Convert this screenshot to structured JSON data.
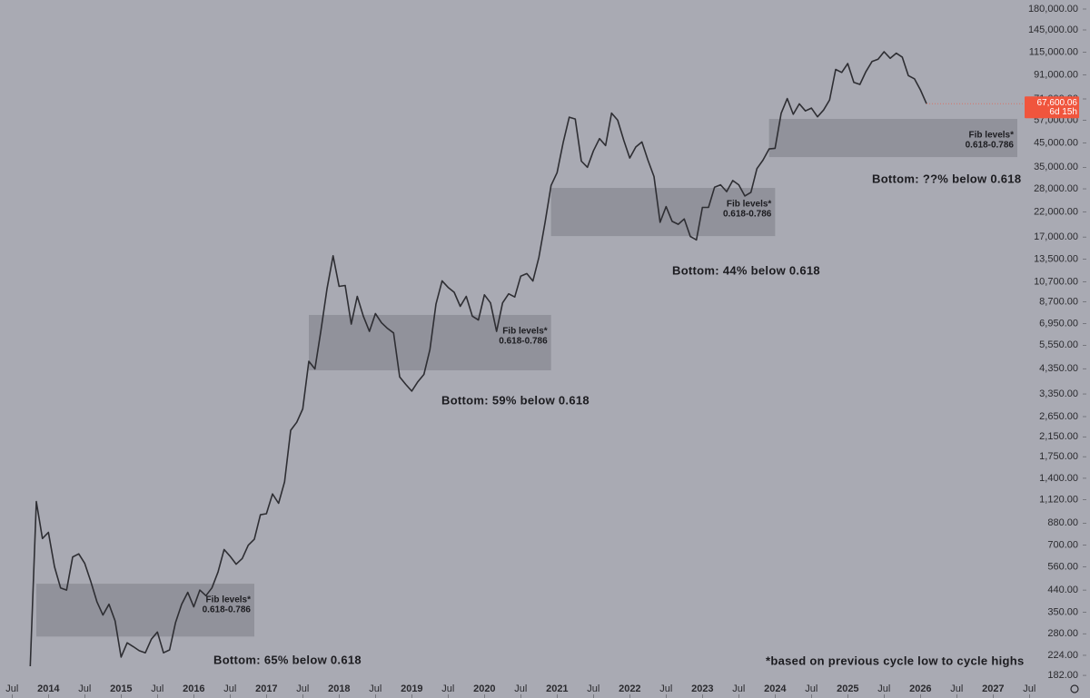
{
  "chart_data": {
    "type": "line",
    "log_scale": true,
    "series": [
      {
        "color": "#2e2e33",
        "x": [
          "2013-10",
          "2013-11",
          "2013-12",
          "2014-01",
          "2014-02",
          "2014-03",
          "2014-04",
          "2014-05",
          "2014-06",
          "2014-07",
          "2014-08",
          "2014-09",
          "2014-10",
          "2014-11",
          "2014-12",
          "2015-01",
          "2015-02",
          "2015-03",
          "2015-04",
          "2015-05",
          "2015-06",
          "2015-07",
          "2015-08",
          "2015-09",
          "2015-10",
          "2015-11",
          "2015-12",
          "2016-01",
          "2016-02",
          "2016-03",
          "2016-04",
          "2016-05",
          "2016-06",
          "2016-07",
          "2016-08",
          "2016-09",
          "2016-10",
          "2016-11",
          "2016-12",
          "2017-01",
          "2017-02",
          "2017-03",
          "2017-04",
          "2017-05",
          "2017-06",
          "2017-07",
          "2017-08",
          "2017-09",
          "2017-10",
          "2017-11",
          "2017-12",
          "2018-01",
          "2018-02",
          "2018-03",
          "2018-04",
          "2018-05",
          "2018-06",
          "2018-07",
          "2018-08",
          "2018-09",
          "2018-10",
          "2018-11",
          "2018-12",
          "2019-01",
          "2019-02",
          "2019-03",
          "2019-04",
          "2019-05",
          "2019-06",
          "2019-07",
          "2019-08",
          "2019-09",
          "2019-10",
          "2019-11",
          "2019-12",
          "2020-01",
          "2020-02",
          "2020-03",
          "2020-04",
          "2020-05",
          "2020-06",
          "2020-07",
          "2020-08",
          "2020-09",
          "2020-10",
          "2020-11",
          "2020-12",
          "2021-01",
          "2021-02",
          "2021-03",
          "2021-04",
          "2021-05",
          "2021-06",
          "2021-07",
          "2021-08",
          "2021-09",
          "2021-10",
          "2021-11",
          "2021-12",
          "2022-01",
          "2022-02",
          "2022-03",
          "2022-04",
          "2022-05",
          "2022-06",
          "2022-07",
          "2022-08",
          "2022-09",
          "2022-10",
          "2022-11",
          "2022-12",
          "2023-01",
          "2023-02",
          "2023-03",
          "2023-04",
          "2023-05",
          "2023-06",
          "2023-07",
          "2023-08",
          "2023-09",
          "2023-10",
          "2023-11",
          "2023-12",
          "2024-01",
          "2024-02",
          "2024-03",
          "2024-04",
          "2024-05",
          "2024-06",
          "2024-07",
          "2024-08",
          "2024-09",
          "2024-10",
          "2024-11",
          "2024-12",
          "2025-01",
          "2025-02",
          "2025-03",
          "2025-04",
          "2025-05",
          "2025-06",
          "2025-07",
          "2025-08",
          "2025-09",
          "2025-10",
          "2025-11",
          "2025-12",
          "2026-01",
          "2026-02"
        ],
        "values": [
          200,
          1100,
          750,
          800,
          560,
          450,
          440,
          620,
          640,
          580,
          480,
          390,
          340,
          380,
          320,
          220,
          255,
          245,
          235,
          230,
          265,
          285,
          230,
          237,
          315,
          380,
          430,
          370,
          440,
          415,
          450,
          530,
          670,
          625,
          575,
          610,
          700,
          745,
          960,
          970,
          1190,
          1080,
          1350,
          2300,
          2500,
          2870,
          4700,
          4340,
          6450,
          9950,
          14000,
          10200,
          10300,
          6900,
          9200,
          7500,
          6400,
          7700,
          7000,
          6600,
          6300,
          4000,
          3700,
          3450,
          3800,
          4100,
          5300,
          8500,
          10800,
          10100,
          9600,
          8300,
          9200,
          7500,
          7200,
          9350,
          8600,
          6400,
          8600,
          9450,
          9140,
          11350,
          11650,
          10780,
          13800,
          19700,
          29000,
          33100,
          45200,
          58800,
          57700,
          37300,
          35000,
          41500,
          47100,
          43800,
          61300,
          57000,
          46300,
          38500,
          43200,
          45500,
          37700,
          31800,
          19800,
          23300,
          20000,
          19400,
          20500,
          17100,
          16500,
          23100,
          23100,
          28500,
          29200,
          27200,
          30500,
          29200,
          26000,
          27000,
          34500,
          37700,
          42300,
          42600,
          61200,
          71300,
          60600,
          67500,
          62700,
          64600,
          59000,
          63300,
          70300,
          96400,
          93400,
          102400,
          84300,
          82500,
          94200,
          104600,
          107100,
          115700,
          108200,
          114000,
          109500,
          90400,
          87500,
          78000,
          67600.06
        ]
      }
    ],
    "xlim": [
      "2013-05",
      "2027-05"
    ],
    "xticks": [
      {
        "value": "2013-07",
        "label": "Jul"
      },
      {
        "value": "2014-01",
        "label": "2014"
      },
      {
        "value": "2014-07",
        "label": "Jul"
      },
      {
        "value": "2015-01",
        "label": "2015"
      },
      {
        "value": "2015-07",
        "label": "Jul"
      },
      {
        "value": "2016-01",
        "label": "2016"
      },
      {
        "value": "2016-07",
        "label": "Jul"
      },
      {
        "value": "2017-01",
        "label": "2017"
      },
      {
        "value": "2017-07",
        "label": "Jul"
      },
      {
        "value": "2018-01",
        "label": "2018"
      },
      {
        "value": "2018-07",
        "label": "Jul"
      },
      {
        "value": "2019-01",
        "label": "2019"
      },
      {
        "value": "2019-07",
        "label": "Jul"
      },
      {
        "value": "2020-01",
        "label": "2020"
      },
      {
        "value": "2020-07",
        "label": "Jul"
      },
      {
        "value": "2021-01",
        "label": "2021"
      },
      {
        "value": "2021-07",
        "label": "Jul"
      },
      {
        "value": "2022-01",
        "label": "2022"
      },
      {
        "value": "2022-07",
        "label": "Jul"
      },
      {
        "value": "2023-01",
        "label": "2023"
      },
      {
        "value": "2023-07",
        "label": "Jul"
      },
      {
        "value": "2024-01",
        "label": "2024"
      },
      {
        "value": "2024-07",
        "label": "Jul"
      },
      {
        "value": "2025-01",
        "label": "2025"
      },
      {
        "value": "2025-07",
        "label": "Jul"
      },
      {
        "value": "2026-01",
        "label": "2026"
      },
      {
        "value": "2026-07",
        "label": "Jul"
      },
      {
        "value": "2027-01",
        "label": "2027"
      },
      {
        "value": "2027-07",
        "label": "Jul"
      }
    ],
    "ylim": [
      144,
      197700
    ],
    "yticks": [
      {
        "value": 182,
        "label": "182.00"
      },
      {
        "value": 224,
        "label": "224.00"
      },
      {
        "value": 280,
        "label": "280.00"
      },
      {
        "value": 350,
        "label": "350.00"
      },
      {
        "value": 440,
        "label": "440.00"
      },
      {
        "value": 560,
        "label": "560.00"
      },
      {
        "value": 700,
        "label": "700.00"
      },
      {
        "value": 880,
        "label": "880.00"
      },
      {
        "value": 1120,
        "label": "1,120.00"
      },
      {
        "value": 1400,
        "label": "1,400.00"
      },
      {
        "value": 1750,
        "label": "1,750.00"
      },
      {
        "value": 2150,
        "label": "2,150.00"
      },
      {
        "value": 2650,
        "label": "2,650.00"
      },
      {
        "value": 3350,
        "label": "3,350.00"
      },
      {
        "value": 4350,
        "label": "4,350.00"
      },
      {
        "value": 5550,
        "label": "5,550.00"
      },
      {
        "value": 6950,
        "label": "6,950.00"
      },
      {
        "value": 8700,
        "label": "8,700.00"
      },
      {
        "value": 10700,
        "label": "10,700.00"
      },
      {
        "value": 13500,
        "label": "13,500.00"
      },
      {
        "value": 17000,
        "label": "17,000.00"
      },
      {
        "value": 22000,
        "label": "22,000.00"
      },
      {
        "value": 28000,
        "label": "28,000.00"
      },
      {
        "value": 35000,
        "label": "35,000.00"
      },
      {
        "value": 45000,
        "label": "45,000.00"
      },
      {
        "value": 57000,
        "label": "57,000.00"
      },
      {
        "value": 71000,
        "label": "71,000.00"
      },
      {
        "value": 91000,
        "label": "91,000.00"
      },
      {
        "value": 115000,
        "label": "115,000.00"
      },
      {
        "value": 145000,
        "label": "145,000.00"
      },
      {
        "value": 180000,
        "label": "180,000.00"
      }
    ],
    "grid": false,
    "bands": [
      {
        "x": [
          "2013-11",
          "2016-11"
        ],
        "y": [
          272,
          470
        ],
        "label": [
          "Fib levels*",
          "0.618-0.786"
        ]
      },
      {
        "x": [
          "2017-08",
          "2020-12"
        ],
        "y": [
          4280,
          7590
        ],
        "label": [
          "Fib levels*",
          "0.618-0.786"
        ]
      },
      {
        "x": [
          "2020-12",
          "2024-01"
        ],
        "y": [
          17170,
          28260
        ],
        "label": [
          "Fib levels*",
          "0.618-0.786"
        ]
      },
      {
        "x": [
          "2023-12",
          "2027-05"
        ],
        "y": [
          38900,
          57730
        ],
        "label": [
          "Fib levels*",
          "0.618-0.786"
        ]
      }
    ],
    "band_color": "#7d7e86",
    "annotations": [
      "Bottom: 65% below 0.618",
      "Bottom: 59% below 0.618",
      "Bottom: 44% below 0.618",
      "Bottom: ??% below 0.618",
      "*based on previous cycle low to cycle highs"
    ],
    "last_price_label": "67,600.06",
    "countdown": "6d 15h",
    "price_tag_color": "#f0553d"
  }
}
